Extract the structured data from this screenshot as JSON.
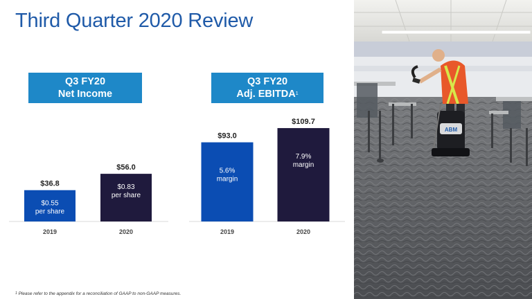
{
  "slide": {
    "title": "Third Quarter 2020 Review",
    "footnote_marker": "1",
    "footnote": "Please refer to the appendix for a reconciliation of GAAP to non-GAAP measures."
  },
  "charts": {
    "net_income": {
      "header_line1": "Q3 FY20",
      "header_line2": "Net Income"
    },
    "ebitda": {
      "header_line1": "Q3 FY20",
      "header_line2": "Adj. EBITDA",
      "header_marker": "1"
    }
  },
  "chart_data": [
    {
      "type": "bar",
      "title": "Q3 FY20 Net Income",
      "categories": [
        "2019",
        "2020"
      ],
      "values": [
        36.8,
        56.0
      ],
      "value_labels": [
        "$36.8",
        "$56.0"
      ],
      "inner_labels": [
        [
          "$0.55",
          "per share"
        ],
        [
          "$0.83",
          "per share"
        ]
      ],
      "colors": [
        "#0b4db3",
        "#1f1a3d"
      ],
      "ylim": [
        0,
        120
      ]
    },
    {
      "type": "bar",
      "title": "Q3 FY20 Adj. EBITDA",
      "categories": [
        "2019",
        "2020"
      ],
      "values": [
        93.0,
        109.7
      ],
      "value_labels": [
        "$93.0",
        "$109.7"
      ],
      "inner_labels": [
        [
          "5.6%",
          "margin"
        ],
        [
          "7.9%",
          "margin"
        ]
      ],
      "colors": [
        "#0b4db3",
        "#1f1a3d"
      ],
      "ylim": [
        0,
        120
      ]
    }
  ],
  "photo": {
    "floor_color": "#5a5d60",
    "ceiling_color": "#e6e6e3",
    "vest_color": "#e8582a",
    "badge_text": "ABM"
  }
}
